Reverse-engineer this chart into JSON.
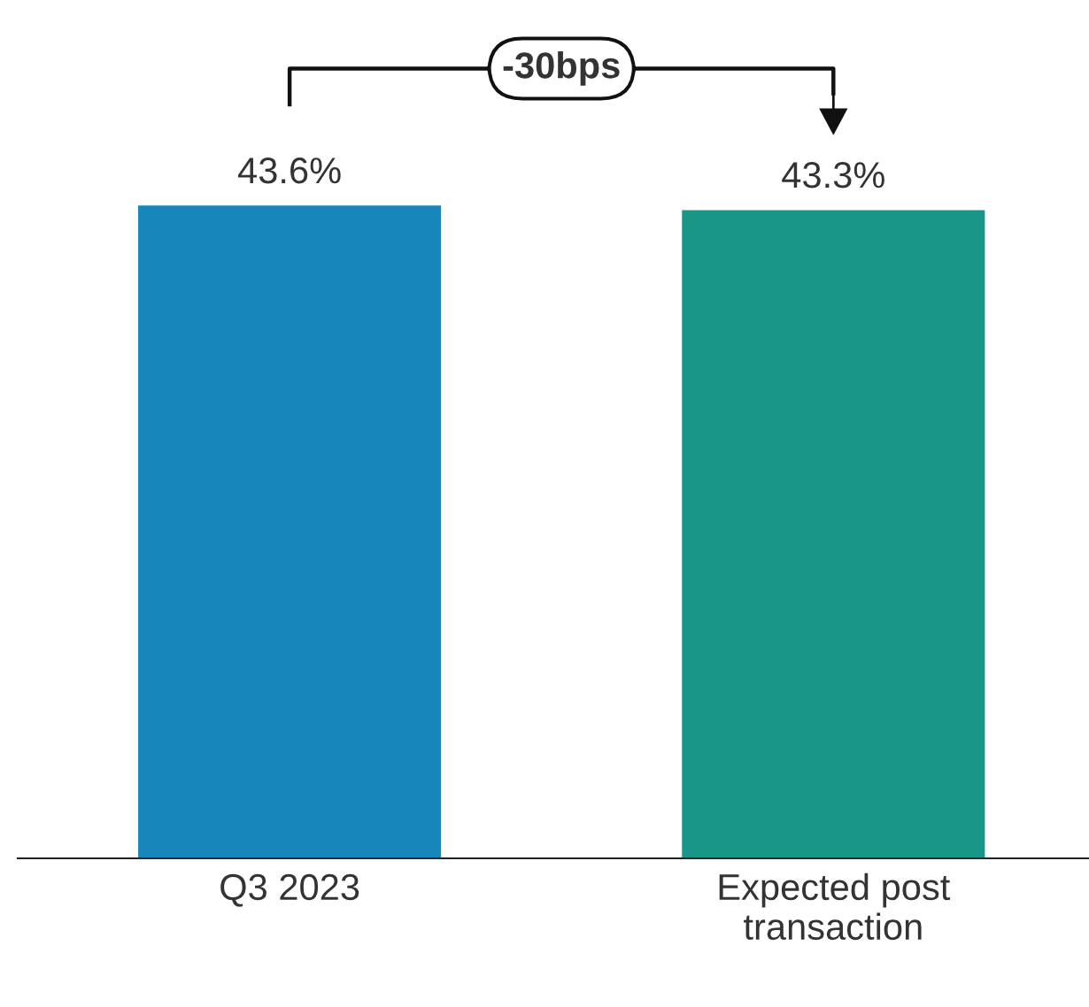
{
  "chart_data": {
    "type": "bar",
    "categories": [
      "Q3 2023",
      "Expected post\ntransaction"
    ],
    "values": [
      43.6,
      43.3
    ],
    "colors": [
      "#1787bb",
      "#1a9688"
    ],
    "data_labels": true,
    "value_labels": [
      "43.6%",
      "43.3%"
    ],
    "annotations": [
      "-30bps"
    ],
    "grid": false
  }
}
